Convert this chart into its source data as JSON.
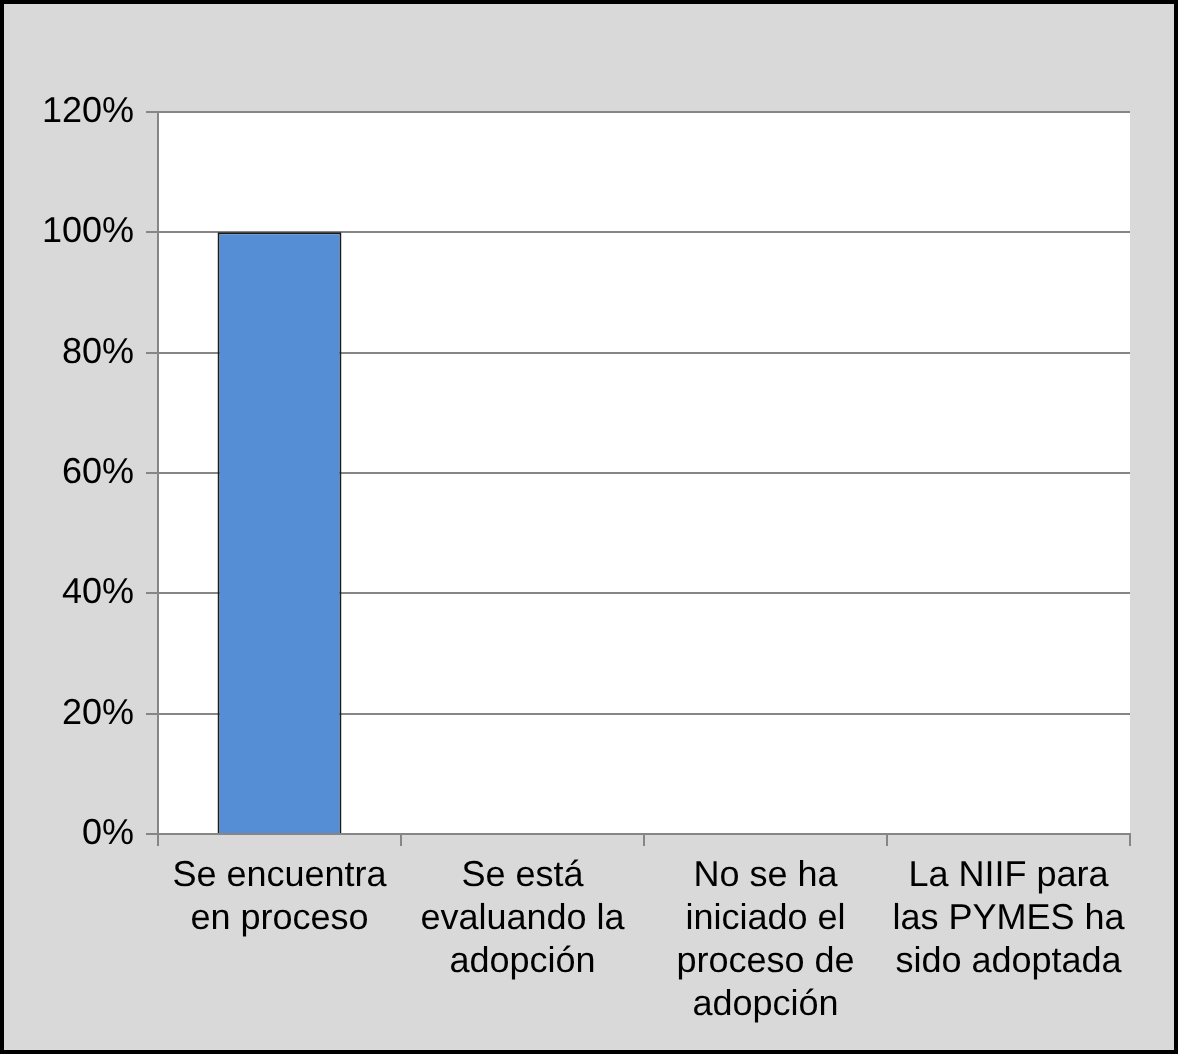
{
  "chart_data": {
    "type": "bar",
    "categories": [
      "Se encuentra en proceso",
      "Se está evaluando la adopción",
      "No se ha iniciado el proceso de adopción",
      "La NIIF para las PYMES ha sido adoptada"
    ],
    "values": [
      100,
      0,
      0,
      0
    ],
    "color": "#558ed5",
    "ylim": [
      0,
      120
    ],
    "yticks": [
      {
        "value": 0,
        "label": "0%"
      },
      {
        "value": 20,
        "label": "20%"
      },
      {
        "value": 40,
        "label": "40%"
      },
      {
        "value": 60,
        "label": "60%"
      },
      {
        "value": 80,
        "label": "80%"
      },
      {
        "value": 100,
        "label": "100%"
      },
      {
        "value": 120,
        "label": "120%"
      }
    ],
    "grid": "y"
  }
}
